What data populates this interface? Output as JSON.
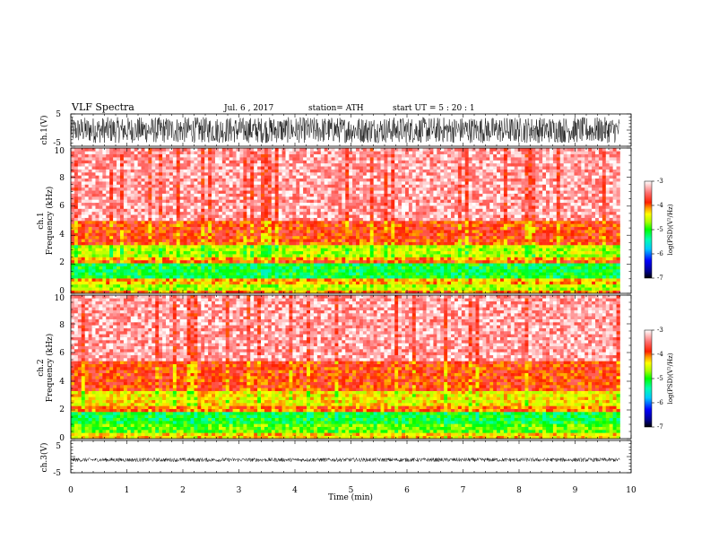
{
  "header": {
    "title": "VLF  Spectra",
    "date": "Jul.  6  , 2017",
    "station": "station= ATH",
    "start": "start  UT  =    5  : 20 : 1"
  },
  "chart_data": [
    {
      "type": "line",
      "panel": "ch1-waveform",
      "ylabel": "ch.1(V)",
      "ylim": [
        -5,
        5
      ],
      "yticks": [
        "5",
        "-5"
      ],
      "xlim": [
        0,
        10
      ],
      "amplitude_range": [
        -4,
        4
      ],
      "duration_min": 9.8
    },
    {
      "type": "heatmap",
      "panel": "ch1-spectrogram",
      "ylabel_top": "ch.1",
      "ylabel": "Frequency  (kHz)",
      "ylim": [
        0,
        10
      ],
      "yticks": [
        "0",
        "2",
        "4",
        "6",
        "8",
        "10"
      ],
      "xlim": [
        0,
        10
      ],
      "duration_min": 9.8,
      "colorbar": {
        "label": "log(PSD)(V²/Hz)",
        "range": [
          -7,
          -3
        ],
        "ticks": [
          "-3",
          "-4",
          "-5",
          "-6",
          "-7"
        ]
      },
      "bands": [
        {
          "f_kHz": [
            0.0,
            0.15
          ],
          "level": -4.0
        },
        {
          "f_kHz": [
            0.15,
            0.7
          ],
          "level": -4.6
        },
        {
          "f_kHz": [
            0.7,
            1.1
          ],
          "level": -4.2
        },
        {
          "f_kHz": [
            1.1,
            2.0
          ],
          "level": -5.1
        },
        {
          "f_kHz": [
            2.0,
            2.2
          ],
          "level": -3.9
        },
        {
          "f_kHz": [
            2.2,
            2.5
          ],
          "level": -4.1
        },
        {
          "f_kHz": [
            2.5,
            3.3
          ],
          "level": -4.6
        },
        {
          "f_kHz": [
            3.3,
            3.6
          ],
          "level": -3.9
        },
        {
          "f_kHz": [
            3.6,
            5.0
          ],
          "level": -3.85
        },
        {
          "f_kHz": [
            5.0,
            10.0
          ],
          "level": -3.3
        }
      ]
    },
    {
      "type": "heatmap",
      "panel": "ch2-spectrogram",
      "ylabel_top": "ch.2",
      "ylabel": "Frequency  (kHz)",
      "ylim": [
        0,
        10
      ],
      "yticks": [
        "0",
        "2",
        "4",
        "6",
        "8",
        "10"
      ],
      "xlim": [
        0,
        10
      ],
      "duration_min": 9.8,
      "colorbar": {
        "label": "log(PSD)(V²/Hz)",
        "range": [
          -7,
          -3
        ],
        "ticks": [
          "-3",
          "-4",
          "-5",
          "-6",
          "-7"
        ]
      },
      "bands": [
        {
          "f_kHz": [
            0.0,
            0.5
          ],
          "level": -4.3
        },
        {
          "f_kHz": [
            0.5,
            1.0
          ],
          "level": -4.8
        },
        {
          "f_kHz": [
            1.0,
            1.9
          ],
          "level": -5.1
        },
        {
          "f_kHz": [
            1.9,
            2.2
          ],
          "level": -4.0
        },
        {
          "f_kHz": [
            2.2,
            3.3
          ],
          "level": -4.35
        },
        {
          "f_kHz": [
            3.3,
            5.5
          ],
          "level": -3.85
        },
        {
          "f_kHz": [
            5.5,
            10.0
          ],
          "level": -3.3
        }
      ]
    },
    {
      "type": "line",
      "panel": "ch3-waveform",
      "ylabel": "ch.3(V)",
      "ylim": [
        -5,
        5
      ],
      "yticks": [
        "5",
        "-5"
      ],
      "xlim": [
        0,
        10
      ],
      "amplitude_range": [
        -0.6,
        0.6
      ],
      "offset": -1.0,
      "duration_min": 9.8,
      "xlabel": "Time  (min)",
      "xticks": [
        "0",
        "1",
        "2",
        "3",
        "4",
        "5",
        "6",
        "7",
        "8",
        "9",
        "10"
      ]
    }
  ]
}
